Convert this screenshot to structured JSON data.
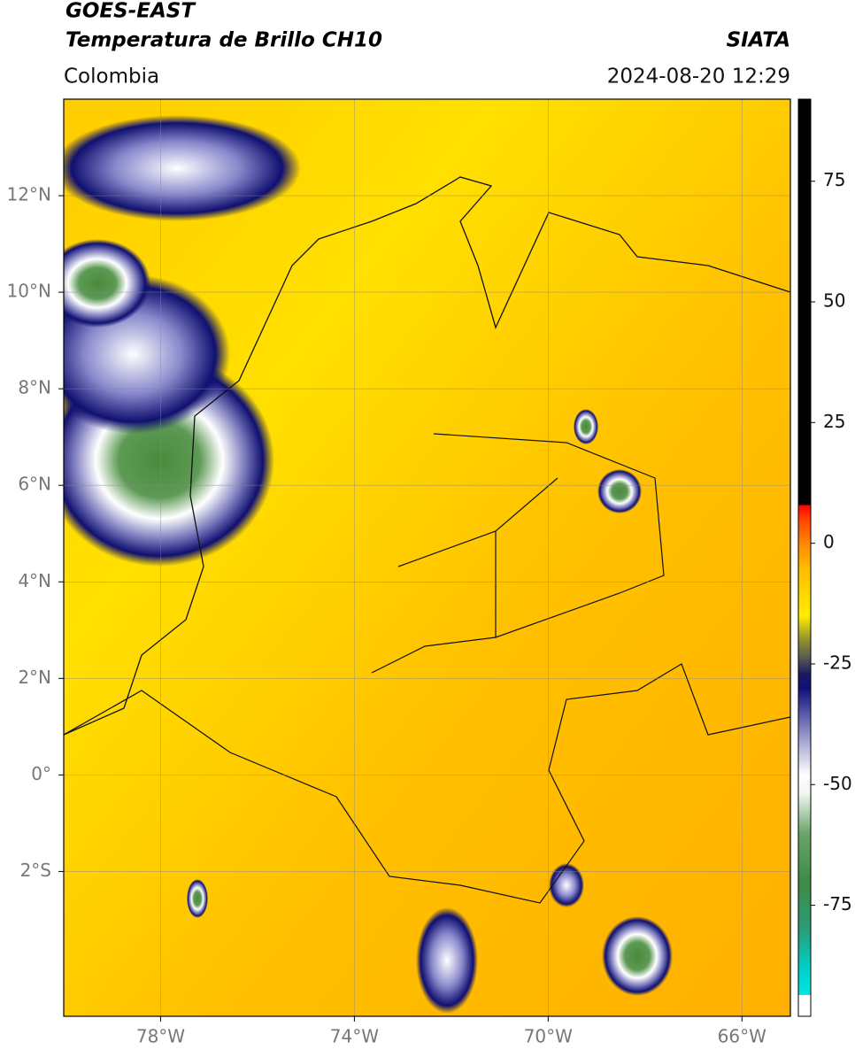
{
  "header": {
    "line1": "GOES-EAST",
    "line2": "Temperatura de Brillo CH10",
    "region": "Colombia",
    "source": "SIATA",
    "datetime": "2024-08-20 12:29"
  },
  "map": {
    "xlim": [
      -80,
      -65
    ],
    "ylim": [
      -5,
      14
    ],
    "xticks": [
      {
        "value": -78,
        "label": "78°W"
      },
      {
        "value": -74,
        "label": "74°W"
      },
      {
        "value": -70,
        "label": "70°W"
      },
      {
        "value": -66,
        "label": "66°W"
      }
    ],
    "yticks": [
      {
        "value": 12,
        "label": "12°N"
      },
      {
        "value": 10,
        "label": "10°N"
      },
      {
        "value": 8,
        "label": "8°N"
      },
      {
        "value": 6,
        "label": "6°N"
      },
      {
        "value": 4,
        "label": "4°N"
      },
      {
        "value": 2,
        "label": "2°N"
      },
      {
        "value": 0,
        "label": "0°"
      },
      {
        "value": -2,
        "label": "2°S"
      }
    ],
    "grid": true
  },
  "colorbar": {
    "lim": [
      -98,
      92
    ],
    "ticks": [
      75,
      50,
      25,
      0,
      -25,
      -50,
      -75
    ],
    "stops": [
      {
        "value": -98,
        "color": "#ffffff"
      },
      {
        "value": -93.5,
        "color": "#ffffff"
      },
      {
        "value": -93.5,
        "color": "#00e5e5"
      },
      {
        "value": -88,
        "color": "#00d0c8"
      },
      {
        "value": -80,
        "color": "#2a9d7a"
      },
      {
        "value": -70,
        "color": "#3f8a45"
      },
      {
        "value": -60,
        "color": "#6aa56a"
      },
      {
        "value": -52,
        "color": "#eef5ee"
      },
      {
        "value": -48,
        "color": "#ffffff"
      },
      {
        "value": -40,
        "color": "#9999cc"
      },
      {
        "value": -30,
        "color": "#10107a"
      },
      {
        "value": -27,
        "color": "#1a1a60"
      },
      {
        "value": -24,
        "color": "#555555"
      },
      {
        "value": -20,
        "color": "#909030"
      },
      {
        "value": -15,
        "color": "#ffee00"
      },
      {
        "value": -5,
        "color": "#ffbb00"
      },
      {
        "value": 0,
        "color": "#ff8800"
      },
      {
        "value": 5,
        "color": "#ff4400"
      },
      {
        "value": 8,
        "color": "#ff0000"
      },
      {
        "value": 8,
        "color": "#000000"
      },
      {
        "value": 92,
        "color": "#000000"
      }
    ]
  }
}
